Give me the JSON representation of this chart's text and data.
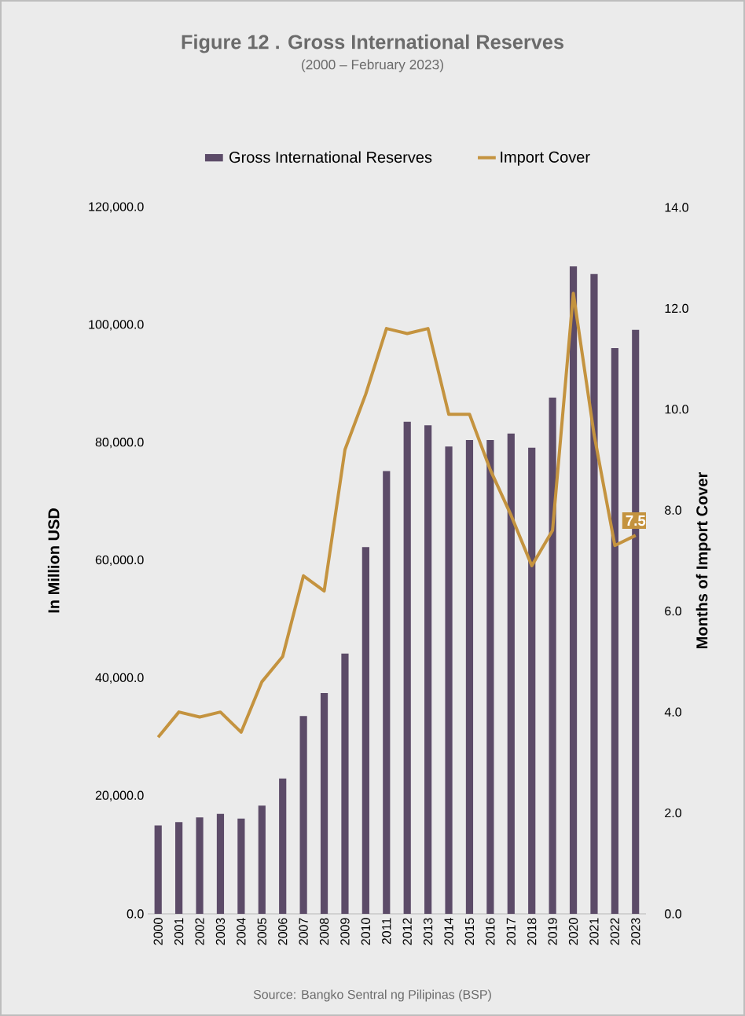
{
  "chart_data": {
    "type": "bar",
    "title": "Figure 12 . Gross International Reserves",
    "subtitle": "(2000 – February 2023)",
    "ylabel": "In Million USD",
    "y2label": "Months of Import Cover",
    "annotations": [
      "Source: Bangko Sentral ng Pilipinas (BSP)"
    ],
    "categories": [
      "2000",
      "2001",
      "2002",
      "2003",
      "2004",
      "2005",
      "2006",
      "2007",
      "2008",
      "2009",
      "2010",
      "2011",
      "2012",
      "2013",
      "2014",
      "2015",
      "2016",
      "2017",
      "2018",
      "2019",
      "2020",
      "2021",
      "2022",
      "2023"
    ],
    "series": [
      {
        "name": "Gross International Reserves",
        "color": "#5c4b68",
        "values": [
          15000,
          15600,
          16400,
          17000,
          16200,
          18400,
          23000,
          33600,
          37500,
          44200,
          62300,
          75200,
          83600,
          83000,
          79400,
          80500,
          80500,
          81600,
          79200,
          87700,
          110000,
          108700,
          96100,
          99200
        ]
      },
      {
        "name": "Import Cover",
        "type": "line",
        "axis": "y2",
        "color": "#c4933f",
        "values": [
          3.5,
          4.0,
          3.9,
          4.0,
          3.6,
          4.6,
          5.1,
          6.7,
          6.4,
          9.2,
          10.3,
          11.6,
          11.5,
          11.6,
          9.9,
          9.9,
          8.8,
          7.9,
          6.9,
          7.6,
          12.3,
          9.5,
          7.3,
          7.5
        ],
        "value_labels": [
          null,
          null,
          null,
          null,
          null,
          null,
          null,
          null,
          null,
          null,
          null,
          null,
          null,
          null,
          null,
          null,
          null,
          null,
          null,
          null,
          null,
          null,
          null,
          "7.5"
        ]
      }
    ],
    "ylim": [
      0,
      120000
    ],
    "yticks": [
      {
        "value": 0,
        "label": "0.0"
      },
      {
        "value": 20000,
        "label": "20,000.0"
      },
      {
        "value": 40000,
        "label": "40,000.0"
      },
      {
        "value": 60000,
        "label": "60,000.0"
      },
      {
        "value": 80000,
        "label": "80,000.0"
      },
      {
        "value": 100000,
        "label": "100,000.0"
      },
      {
        "value": 120000,
        "label": "120,000.0"
      }
    ],
    "y2lim": [
      0,
      14
    ],
    "y2ticks": [
      {
        "value": 0,
        "label": "0.0"
      },
      {
        "value": 2,
        "label": "2.0"
      },
      {
        "value": 4,
        "label": "4.0"
      },
      {
        "value": 6,
        "label": "6.0"
      },
      {
        "value": 8,
        "label": "8.0"
      },
      {
        "value": 10,
        "label": "10.0"
      },
      {
        "value": 12,
        "label": "12.0"
      },
      {
        "value": 14,
        "label": "14.0"
      }
    ],
    "legend": "top",
    "grid": false,
    "marker": "none"
  }
}
